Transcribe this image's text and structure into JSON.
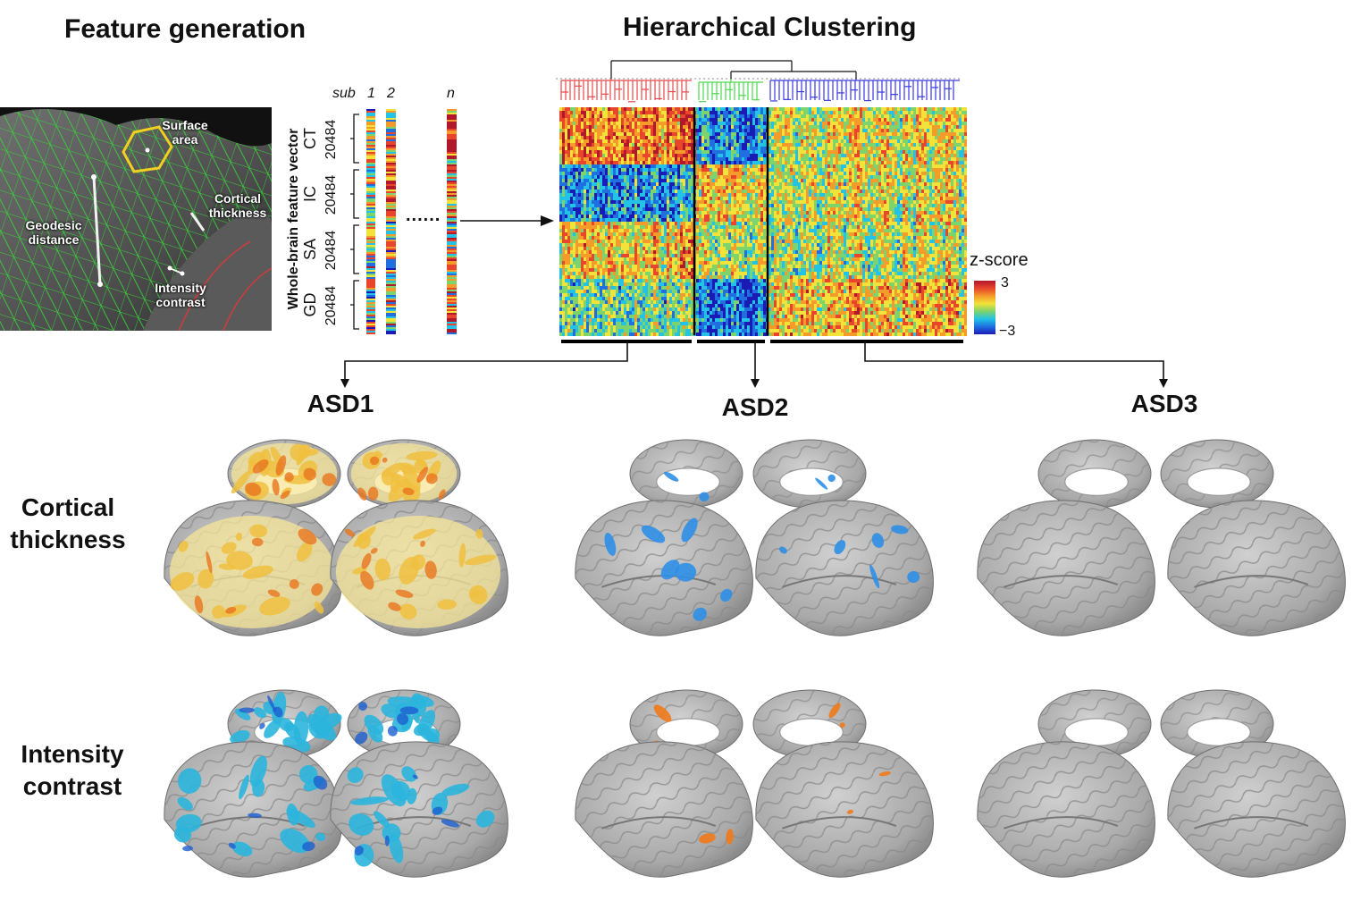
{
  "titles": {
    "feature_generation": "Feature generation",
    "hierarchical_clustering": "Hierarchical Clustering"
  },
  "mesh_labels": {
    "surface_area": "Surface area",
    "cortical_thickness": "Cortical thickness",
    "geodesic_distance": "Geodesic distance",
    "intensity_contrast": "Intensity contrast"
  },
  "feature_vector": {
    "axis_title": "Whole-brain feature vector",
    "subject_prefix": "sub",
    "subjects": [
      "1",
      "2",
      "n"
    ],
    "dots": "......",
    "blocks": [
      {
        "code": "CT",
        "count": "20484"
      },
      {
        "code": "IC",
        "count": "20484"
      },
      {
        "code": "SA",
        "count": "20484"
      },
      {
        "code": "GD",
        "count": "20484"
      }
    ]
  },
  "colorbar": {
    "title": "z-score",
    "max_label": "3",
    "min_label": "−3",
    "colors": [
      "#b2182b",
      "#e8452c",
      "#f59b2a",
      "#f2e33a",
      "#7dd36c",
      "#22c3e6",
      "#1f6fe0",
      "#1a1ab4"
    ]
  },
  "clusters": [
    {
      "name": "ASD1",
      "color": "#e8474a"
    },
    {
      "name": "ASD2",
      "color": "#4cd84c"
    },
    {
      "name": "ASD3",
      "color": "#3a3ae0"
    }
  ],
  "rows": [
    {
      "line1": "Cortical",
      "line2": "thickness"
    },
    {
      "line1": "Intensity",
      "line2": "contrast"
    }
  ],
  "brain_maps": {
    "ct_asd1_color": "#f0c040",
    "ct_asd2_color": "#2f8fe6",
    "ic_asd1_color": "#2bb5dd",
    "ic_asd2_color": "#f07a1a",
    "neutral_color": "#a9a9a9"
  }
}
